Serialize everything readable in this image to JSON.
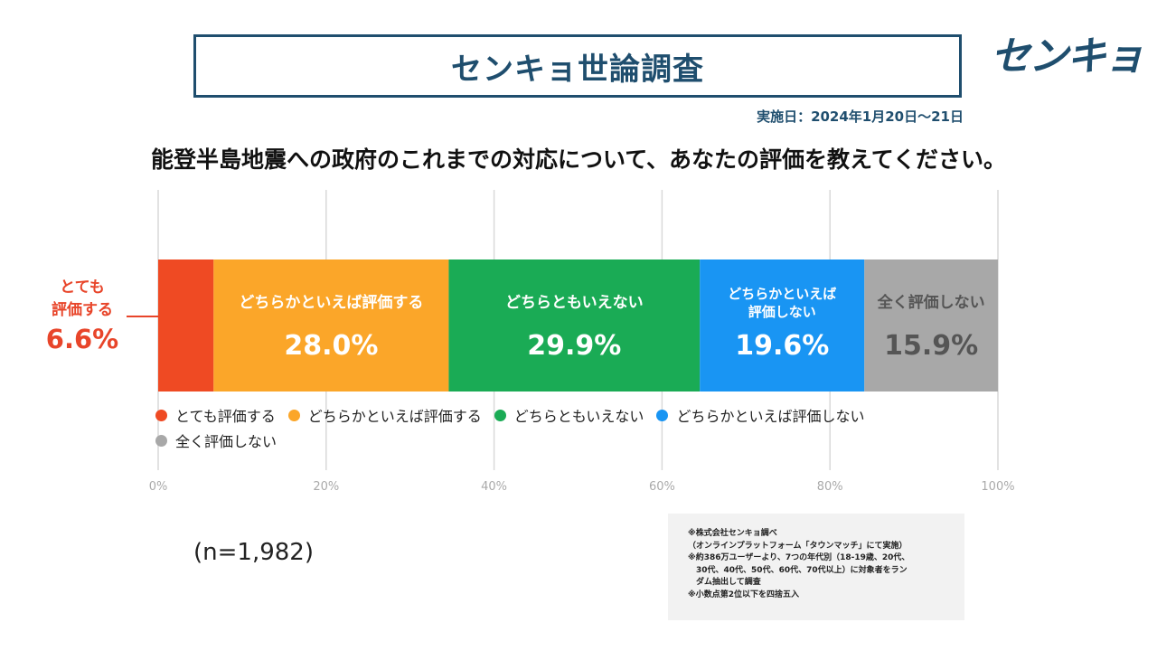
{
  "header": {
    "title": "センキョ世論調査",
    "logo_text": "センキョ",
    "date": "実施日：2024年1月20日～21日"
  },
  "question": "能登半島地震への政府のこれまでの対応について、あなたの評価を教えてください。",
  "chart_data": {
    "type": "bar",
    "orientation": "horizontal-stacked",
    "title": "能登半島地震への政府のこれまでの対応について、あなたの評価を教えてください。",
    "xlim": [
      0,
      100
    ],
    "x_ticks": [
      "0%",
      "20%",
      "40%",
      "60%",
      "80%",
      "100%"
    ],
    "grid": true,
    "legend_position": "bottom",
    "series": [
      {
        "name": "とても評価する",
        "value": 6.6,
        "label": "6.6%",
        "bar_label": [
          "とても",
          "評価する"
        ],
        "color": "#ef4a23",
        "text_color": "#e8452a"
      },
      {
        "name": "どちらかといえば評価する",
        "value": 28.0,
        "label": "28.0%",
        "bar_label": [
          "どちらかといえば評価する"
        ],
        "color": "#fba629",
        "text_color": "#ffffff"
      },
      {
        "name": "どちらともいえない",
        "value": 29.9,
        "label": "29.9%",
        "bar_label": [
          "どちらともいえない"
        ],
        "color": "#1aab55",
        "text_color": "#ffffff"
      },
      {
        "name": "どちらかといえば評価しない",
        "value": 19.6,
        "label": "19.6%",
        "bar_label": [
          "どちらかといえば",
          "評価しない"
        ],
        "color": "#1995f3",
        "text_color": "#ffffff"
      },
      {
        "name": "全く評価しない",
        "value": 15.9,
        "label": "15.9%",
        "bar_label": [
          "全く評価しない"
        ],
        "color": "#a8a8a8",
        "text_color": "#555555"
      }
    ]
  },
  "sample_size": "(n=1,982)",
  "notes": [
    "※株式会社センキョ調べ",
    "（オンラインプラットフォーム「タウンマッチ」にて実施）",
    "※約386万ユーザーより、7つの年代別（18-19歳、20代、",
    "　30代、40代、50代、60代、70代以上）に対象者をラン",
    "　ダム抽出して調査",
    "※小数点第2位以下を四捨五入"
  ]
}
